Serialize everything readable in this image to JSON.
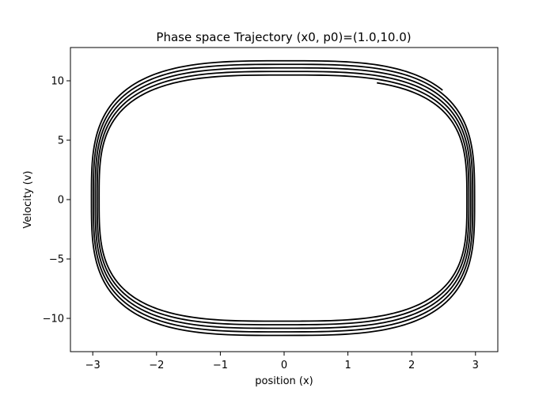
{
  "chart_data": {
    "type": "line",
    "title": "Phase space Trajectory (x0, p0)=(1.0,10.0)",
    "xlabel": "position (x)",
    "ylabel": "Velocity (v)",
    "xlim": [
      -3.35,
      3.35
    ],
    "ylim": [
      -12.8,
      12.8
    ],
    "xticks": [
      -3,
      -2,
      -1,
      0,
      1,
      2,
      3
    ],
    "yticks": [
      -10,
      -5,
      0,
      5,
      10
    ],
    "xtick_labels": [
      "−3",
      "−2",
      "−1",
      "0",
      "1",
      "2",
      "3"
    ],
    "ytick_labels": [
      "−10",
      "−5",
      "0",
      "5",
      "10"
    ],
    "grid": false,
    "legend": false,
    "line_color": "#000000",
    "series": [
      {
        "start": [
          1.0,
          10.0
        ],
        "end": [
          2.55,
          -9.1
        ],
        "rings": [
          {
            "x_right": 2.86,
            "x_left": -2.88,
            "v_top": 10.2,
            "v_bottom": -10.1
          },
          {
            "x_right": 2.89,
            "x_left": -2.91,
            "v_top": 10.5,
            "v_bottom": -10.4
          },
          {
            "x_right": 2.92,
            "x_left": -2.94,
            "v_top": 10.8,
            "v_bottom": -10.7
          },
          {
            "x_right": 2.95,
            "x_left": -2.97,
            "v_top": 11.1,
            "v_bottom": -11.0
          },
          {
            "x_right": 2.98,
            "x_left": -3.0,
            "v_top": 11.4,
            "v_bottom": -11.3
          },
          {
            "x_right": 3.01,
            "x_left": -3.03,
            "v_top": 11.7,
            "v_bottom": -11.6
          }
        ]
      }
    ]
  }
}
